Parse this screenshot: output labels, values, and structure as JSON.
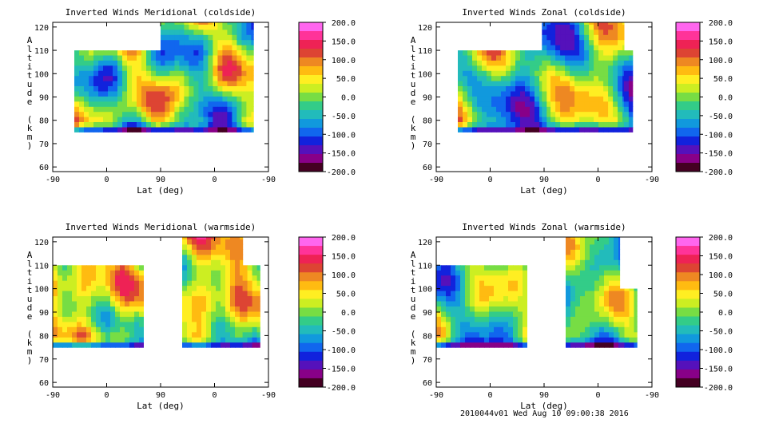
{
  "footer_text": "2010044v01 Wed Aug 10 09:00:38 2016",
  "colorbar": {
    "ticks": [
      "200.0",
      "150.0",
      "100.0",
      "50.0",
      "0.0",
      "-50.0",
      "-100.0",
      "-150.0",
      "-200.0"
    ],
    "colors": [
      "#ff66ee",
      "#ff3399",
      "#ee2255",
      "#dd4433",
      "#ee8822",
      "#ffbb11",
      "#ffee22",
      "#ccee22",
      "#77dd44",
      "#33cc88",
      "#22bbbb",
      "#1199dd",
      "#1166ee",
      "#1122dd",
      "#5511bb",
      "#880088",
      "#440022"
    ]
  },
  "chart_data": [
    {
      "type": "heatmap",
      "title": "Inverted Winds Meridional (coldside)",
      "xlabel": "Lat (deg)",
      "ylabel": "Altitude (km)",
      "x_ticks": [
        "-90",
        "0",
        "90",
        "0",
        "-90"
      ],
      "y_ticks": [
        "60",
        "70",
        "80",
        "90",
        "100",
        "110",
        "120"
      ],
      "ylim": [
        58,
        122
      ],
      "zlim": [
        -200,
        200
      ]
    },
    {
      "type": "heatmap",
      "title": "Inverted Winds Zonal (coldside)",
      "xlabel": "Lat (deg)",
      "ylabel": "Altitude (km)",
      "x_ticks": [
        "-90",
        "0",
        "90",
        "0",
        "-90"
      ],
      "y_ticks": [
        "60",
        "70",
        "80",
        "90",
        "100",
        "110",
        "120"
      ],
      "ylim": [
        58,
        122
      ],
      "zlim": [
        -200,
        200
      ]
    },
    {
      "type": "heatmap",
      "title": "Inverted Winds Meridional (warmside)",
      "xlabel": "Lat (deg)",
      "ylabel": "Altitude (km)",
      "x_ticks": [
        "-90",
        "0",
        "90",
        "0",
        "-90"
      ],
      "y_ticks": [
        "60",
        "70",
        "80",
        "90",
        "100",
        "110",
        "120"
      ],
      "ylim": [
        58,
        122
      ],
      "zlim": [
        -200,
        200
      ]
    },
    {
      "type": "heatmap",
      "title": "Inverted Winds Zonal (warmside)",
      "xlabel": "Lat (deg)",
      "ylabel": "Altitude (km)",
      "x_ticks": [
        "-90",
        "0",
        "90",
        "0",
        "-90"
      ],
      "y_ticks": [
        "60",
        "70",
        "80",
        "90",
        "100",
        "110",
        "120"
      ],
      "ylim": [
        58,
        122
      ],
      "zlim": [
        -200,
        200
      ]
    }
  ]
}
